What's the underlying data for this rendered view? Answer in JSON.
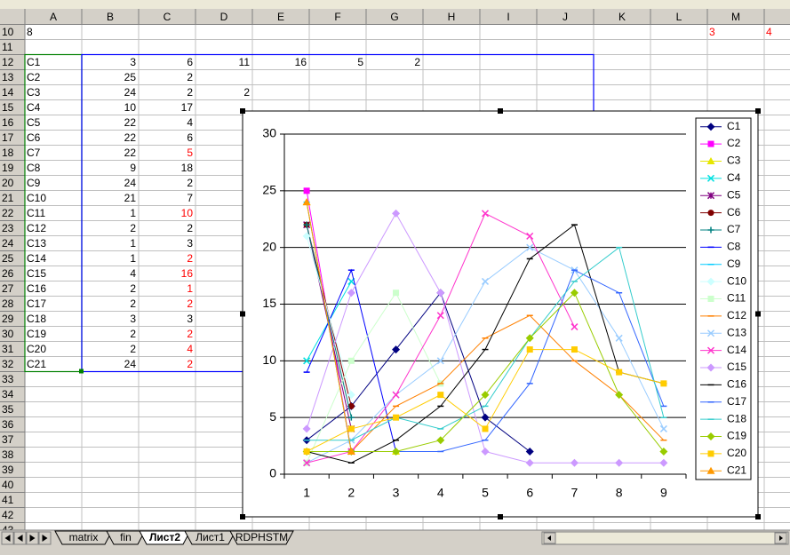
{
  "sheet": {
    "columns": [
      "A",
      "B",
      "C",
      "D",
      "E",
      "F",
      "G",
      "H",
      "I",
      "J",
      "K",
      "L",
      "M"
    ],
    "rows": [
      {
        "number": "10",
        "cells": {
          "A": "8",
          "M": "3",
          "N": "4"
        },
        "red": [
          "M",
          "N"
        ]
      },
      {
        "number": "11",
        "cells": {}
      },
      {
        "number": "12",
        "cells": {
          "A": "C1",
          "B": "3",
          "C": "6",
          "D": "11",
          "E": "16",
          "F": "5",
          "G": "2"
        }
      },
      {
        "number": "13",
        "cells": {
          "A": "C2",
          "B": "25",
          "C": "2"
        }
      },
      {
        "number": "14",
        "cells": {
          "A": "C3",
          "B": "24",
          "C": "2",
          "D": "2"
        }
      },
      {
        "number": "15",
        "cells": {
          "A": "C4",
          "B": "10",
          "C": "17"
        }
      },
      {
        "number": "16",
        "cells": {
          "A": "C5",
          "B": "22",
          "C": "4"
        }
      },
      {
        "number": "17",
        "cells": {
          "A": "C6",
          "B": "22",
          "C": "6"
        }
      },
      {
        "number": "18",
        "cells": {
          "A": "C7",
          "B": "22",
          "C": "5"
        },
        "red": [
          "C"
        ]
      },
      {
        "number": "19",
        "cells": {
          "A": "C8",
          "B": "9",
          "C": "18"
        }
      },
      {
        "number": "20",
        "cells": {
          "A": "C9",
          "B": "24",
          "C": "2"
        }
      },
      {
        "number": "21",
        "cells": {
          "A": "C10",
          "B": "21",
          "C": "7"
        }
      },
      {
        "number": "22",
        "cells": {
          "A": "C11",
          "B": "1",
          "C": "10"
        },
        "red": [
          "C"
        ]
      },
      {
        "number": "23",
        "cells": {
          "A": "C12",
          "B": "2",
          "C": "2"
        }
      },
      {
        "number": "24",
        "cells": {
          "A": "C13",
          "B": "1",
          "C": "3"
        }
      },
      {
        "number": "25",
        "cells": {
          "A": "C14",
          "B": "1",
          "C": "2"
        },
        "red": [
          "C"
        ]
      },
      {
        "number": "26",
        "cells": {
          "A": "C15",
          "B": "4",
          "C": "16"
        },
        "red": [
          "C"
        ]
      },
      {
        "number": "27",
        "cells": {
          "A": "C16",
          "B": "2",
          "C": "1"
        },
        "red": [
          "C"
        ]
      },
      {
        "number": "28",
        "cells": {
          "A": "C17",
          "B": "2",
          "C": "2"
        },
        "red": [
          "C"
        ]
      },
      {
        "number": "29",
        "cells": {
          "A": "C18",
          "B": "3",
          "C": "3"
        }
      },
      {
        "number": "30",
        "cells": {
          "A": "C19",
          "B": "2",
          "C": "2"
        },
        "red": [
          "C"
        ]
      },
      {
        "number": "31",
        "cells": {
          "A": "C20",
          "B": "2",
          "C": "4"
        },
        "red": [
          "C"
        ]
      },
      {
        "number": "32",
        "cells": {
          "A": "C21",
          "B": "24",
          "C": "2"
        },
        "red": [
          "C"
        ]
      },
      {
        "number": "33",
        "cells": {}
      },
      {
        "number": "34",
        "cells": {}
      },
      {
        "number": "35",
        "cells": {}
      },
      {
        "number": "36",
        "cells": {}
      },
      {
        "number": "37",
        "cells": {}
      },
      {
        "number": "38",
        "cells": {}
      },
      {
        "number": "39",
        "cells": {}
      },
      {
        "number": "40",
        "cells": {}
      },
      {
        "number": "41",
        "cells": {}
      },
      {
        "number": "42",
        "cells": {}
      },
      {
        "number": "43",
        "cells": {}
      }
    ],
    "tabs": [
      "matrix",
      "fin",
      "Лист2",
      "Лист1",
      "RDPHSTM"
    ],
    "active_tab": 2
  },
  "chart_data": {
    "type": "line",
    "categories": [
      "1",
      "2",
      "3",
      "4",
      "5",
      "6",
      "7",
      "8",
      "9"
    ],
    "ylim": [
      0,
      30
    ],
    "yticks": [
      0,
      5,
      10,
      15,
      20,
      25,
      30
    ],
    "grid": true,
    "series": [
      {
        "name": "C1",
        "color": "#000080",
        "marker": "diamond",
        "values": [
          3,
          6,
          11,
          16,
          5,
          2,
          null,
          null,
          null
        ]
      },
      {
        "name": "C2",
        "color": "#ff00ff",
        "marker": "square",
        "values": [
          25,
          2,
          null,
          null,
          null,
          null,
          null,
          null,
          null
        ]
      },
      {
        "name": "C3",
        "color": "#e6e600",
        "marker": "triangle",
        "values": [
          24,
          2,
          2,
          null,
          null,
          null,
          null,
          null,
          null
        ]
      },
      {
        "name": "C4",
        "color": "#00e0e0",
        "marker": "x",
        "values": [
          10,
          17,
          null,
          null,
          null,
          null,
          null,
          null,
          null
        ]
      },
      {
        "name": "C5",
        "color": "#800080",
        "marker": "star",
        "values": [
          22,
          4,
          null,
          null,
          null,
          null,
          null,
          null,
          null
        ]
      },
      {
        "name": "C6",
        "color": "#800000",
        "marker": "circle",
        "values": [
          22,
          6,
          null,
          null,
          null,
          null,
          null,
          null,
          null
        ]
      },
      {
        "name": "C7",
        "color": "#008080",
        "marker": "plus",
        "values": [
          22,
          5,
          null,
          null,
          null,
          null,
          null,
          null,
          null
        ]
      },
      {
        "name": "C8",
        "color": "#0000ff",
        "marker": "dash",
        "values": [
          9,
          18,
          2,
          null,
          null,
          null,
          null,
          null,
          null
        ]
      },
      {
        "name": "C9",
        "color": "#00ccff",
        "marker": "dash",
        "values": [
          24,
          2,
          null,
          null,
          null,
          null,
          null,
          null,
          null
        ]
      },
      {
        "name": "C10",
        "color": "#ccffff",
        "marker": "diamond",
        "values": [
          21,
          7,
          null,
          null,
          null,
          null,
          null,
          null,
          null
        ]
      },
      {
        "name": "C11",
        "color": "#ccffcc",
        "marker": "square",
        "values": [
          1,
          10,
          16,
          8,
          null,
          null,
          null,
          null,
          null
        ]
      },
      {
        "name": "C12",
        "color": "#ff8000",
        "marker": "dash",
        "values": [
          2,
          2,
          6,
          8,
          12,
          14,
          10,
          7,
          3
        ]
      },
      {
        "name": "C13",
        "color": "#99ccff",
        "marker": "x",
        "values": [
          1,
          3,
          7,
          10,
          17,
          20,
          18,
          12,
          4
        ]
      },
      {
        "name": "C14",
        "color": "#ff33cc",
        "marker": "x",
        "values": [
          1,
          2,
          7,
          14,
          23,
          21,
          13,
          null,
          null
        ]
      },
      {
        "name": "C15",
        "color": "#cc99ff",
        "marker": "diamond",
        "values": [
          4,
          16,
          23,
          16,
          2,
          1,
          1,
          1,
          1
        ]
      },
      {
        "name": "C16",
        "color": "#000000",
        "marker": "dash",
        "values": [
          2,
          1,
          3,
          6,
          11,
          19,
          22,
          9,
          8
        ]
      },
      {
        "name": "C17",
        "color": "#3366ff",
        "marker": "dash",
        "values": [
          2,
          2,
          2,
          2,
          3,
          8,
          18,
          16,
          6
        ]
      },
      {
        "name": "C18",
        "color": "#33cccc",
        "marker": "dash",
        "values": [
          3,
          3,
          5,
          4,
          6,
          12,
          17,
          20,
          5
        ]
      },
      {
        "name": "C19",
        "color": "#99cc00",
        "marker": "diamond",
        "values": [
          2,
          2,
          2,
          3,
          7,
          12,
          16,
          7,
          2
        ]
      },
      {
        "name": "C20",
        "color": "#ffcc00",
        "marker": "square",
        "values": [
          2,
          4,
          5,
          7,
          4,
          11,
          11,
          9,
          8
        ]
      },
      {
        "name": "C21",
        "color": "#ff9900",
        "marker": "triangle",
        "values": [
          24,
          2,
          null,
          null,
          null,
          null,
          null,
          null,
          null
        ]
      }
    ]
  }
}
